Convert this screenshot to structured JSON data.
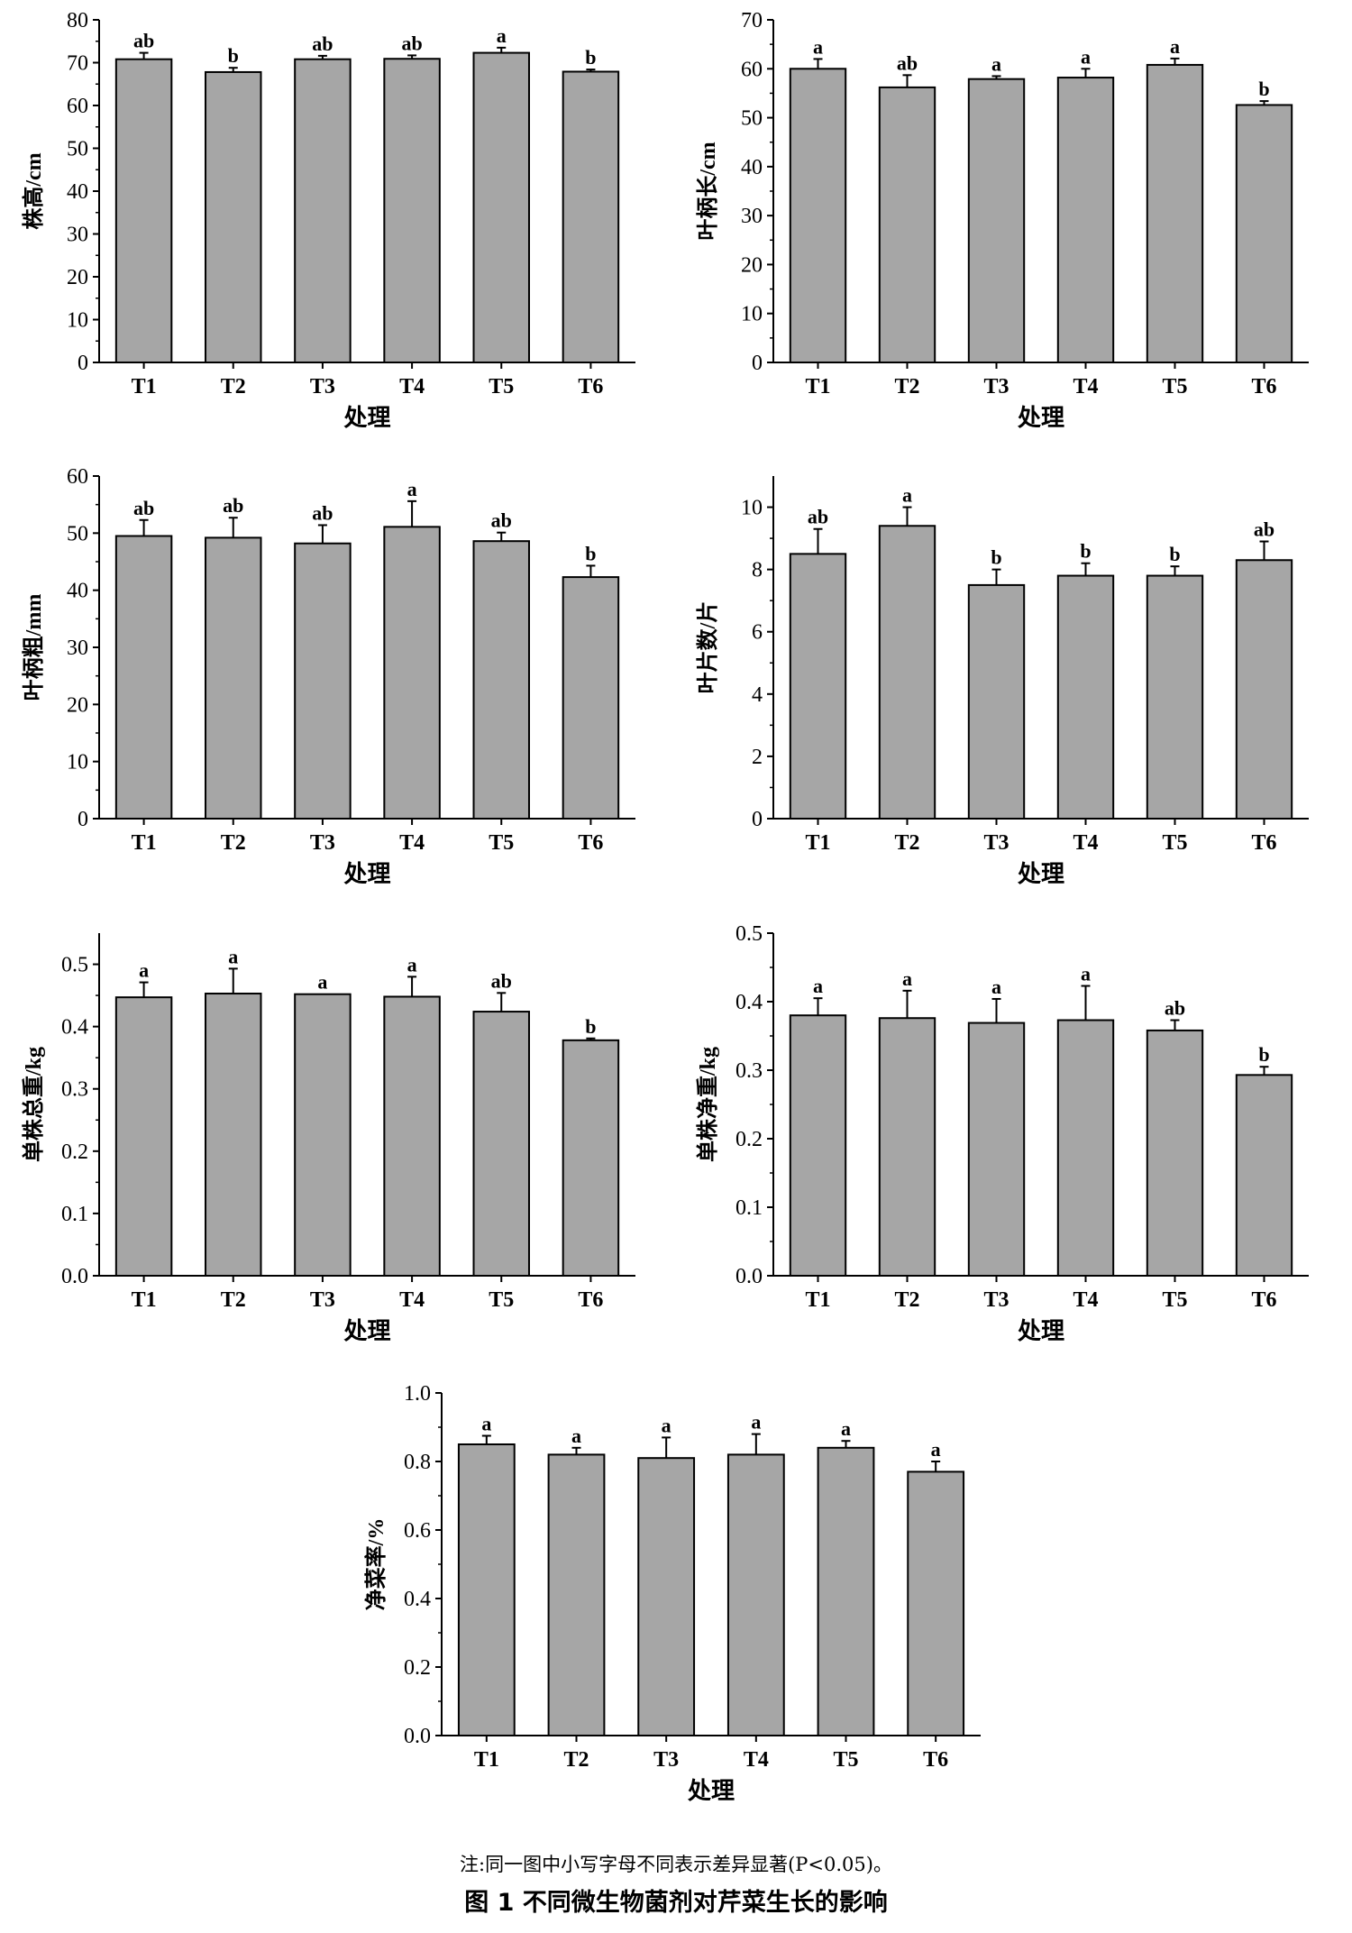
{
  "chart_data": [
    {
      "type": "bar",
      "xlabel": "处理",
      "ylabel": "株高/cm",
      "categories": [
        "T1",
        "T2",
        "T3",
        "T4",
        "T5",
        "T6"
      ],
      "values": [
        70.8,
        67.8,
        70.8,
        70.9,
        72.3,
        67.9
      ],
      "errors": [
        1.5,
        1.0,
        0.8,
        0.8,
        1.2,
        0.5
      ],
      "letters": [
        "ab",
        "b",
        "ab",
        "ab",
        "a",
        "b"
      ],
      "ylim": [
        0,
        80
      ],
      "yticks": [
        "0",
        "10",
        "20",
        "30",
        "40",
        "50",
        "60",
        "70",
        "80"
      ],
      "bar_color": "#a6a6a6"
    },
    {
      "type": "bar",
      "xlabel": "处理",
      "ylabel": "叶柄长/cm",
      "categories": [
        "T1",
        "T2",
        "T3",
        "T4",
        "T5",
        "T6"
      ],
      "values": [
        60.0,
        56.2,
        57.9,
        58.2,
        60.8,
        52.6
      ],
      "errors": [
        2.0,
        2.5,
        0.6,
        1.8,
        1.3,
        0.8
      ],
      "letters": [
        "a",
        "ab",
        "a",
        "a",
        "a",
        "b"
      ],
      "ylim": [
        0,
        70
      ],
      "yticks": [
        "0",
        "10",
        "20",
        "30",
        "40",
        "50",
        "60",
        "70"
      ],
      "bar_color": "#a6a6a6"
    },
    {
      "type": "bar",
      "xlabel": "处理",
      "ylabel": "叶柄粗/mm",
      "categories": [
        "T1",
        "T2",
        "T3",
        "T4",
        "T5",
        "T6"
      ],
      "values": [
        49.5,
        49.2,
        48.2,
        51.1,
        48.6,
        42.3
      ],
      "errors": [
        2.8,
        3.5,
        3.2,
        4.5,
        1.5,
        2.0
      ],
      "letters": [
        "ab",
        "ab",
        "ab",
        "a",
        "ab",
        "b"
      ],
      "ylim": [
        0,
        60
      ],
      "yticks": [
        "0",
        "10",
        "20",
        "30",
        "40",
        "50",
        "60"
      ],
      "bar_color": "#a6a6a6"
    },
    {
      "type": "bar",
      "xlabel": "处理",
      "ylabel": "叶片数/片",
      "categories": [
        "T1",
        "T2",
        "T3",
        "T4",
        "T5",
        "T6"
      ],
      "values": [
        8.5,
        9.4,
        7.5,
        7.8,
        7.8,
        8.3
      ],
      "errors": [
        0.8,
        0.6,
        0.5,
        0.4,
        0.3,
        0.6
      ],
      "letters": [
        "ab",
        "a",
        "b",
        "b",
        "b",
        "ab"
      ],
      "ylim": [
        0,
        11
      ],
      "yticks": [
        "0",
        "2",
        "4",
        "6",
        "8",
        "10"
      ],
      "bar_color": "#a6a6a6"
    },
    {
      "type": "bar",
      "xlabel": "处理",
      "ylabel": "单株总重/kg",
      "categories": [
        "T1",
        "T2",
        "T3",
        "T4",
        "T5",
        "T6"
      ],
      "values": [
        0.447,
        0.453,
        0.452,
        0.448,
        0.424,
        0.378
      ],
      "errors": [
        0.024,
        0.04,
        0.0,
        0.032,
        0.03,
        0.003
      ],
      "letters": [
        "a",
        "a",
        "a",
        "a",
        "ab",
        "b"
      ],
      "ylim": [
        0,
        0.55
      ],
      "yticks": [
        "0.0",
        "0.1",
        "0.2",
        "0.3",
        "0.4",
        "0.5"
      ],
      "bar_color": "#a6a6a6"
    },
    {
      "type": "bar",
      "xlabel": "处理",
      "ylabel": "单株净重/kg",
      "categories": [
        "T1",
        "T2",
        "T3",
        "T4",
        "T5",
        "T6"
      ],
      "values": [
        0.38,
        0.376,
        0.369,
        0.373,
        0.358,
        0.293
      ],
      "errors": [
        0.025,
        0.04,
        0.035,
        0.05,
        0.015,
        0.012
      ],
      "letters": [
        "a",
        "a",
        "a",
        "a",
        "ab",
        "b"
      ],
      "ylim": [
        0,
        0.5
      ],
      "yticks": [
        "0.0",
        "0.1",
        "0.2",
        "0.3",
        "0.4",
        "0.5"
      ],
      "bar_color": "#a6a6a6"
    },
    {
      "type": "bar",
      "xlabel": "处理",
      "ylabel": "净菜率/%",
      "categories": [
        "T1",
        "T2",
        "T3",
        "T4",
        "T5",
        "T6"
      ],
      "values": [
        0.85,
        0.82,
        0.81,
        0.82,
        0.84,
        0.77
      ],
      "errors": [
        0.025,
        0.02,
        0.06,
        0.06,
        0.02,
        0.03
      ],
      "letters": [
        "a",
        "a",
        "a",
        "a",
        "a",
        "a"
      ],
      "ylim": [
        0,
        1.0
      ],
      "yticks": [
        "0.0",
        "0.2",
        "0.4",
        "0.6",
        "0.8",
        "1.0"
      ],
      "bar_color": "#a6a6a6"
    }
  ],
  "caption": {
    "note": "注:同一图中小写字母不同表示差异显著(P<0.05)。",
    "title": "图 1   不同微生物菌剂对芹菜生长的影响"
  }
}
